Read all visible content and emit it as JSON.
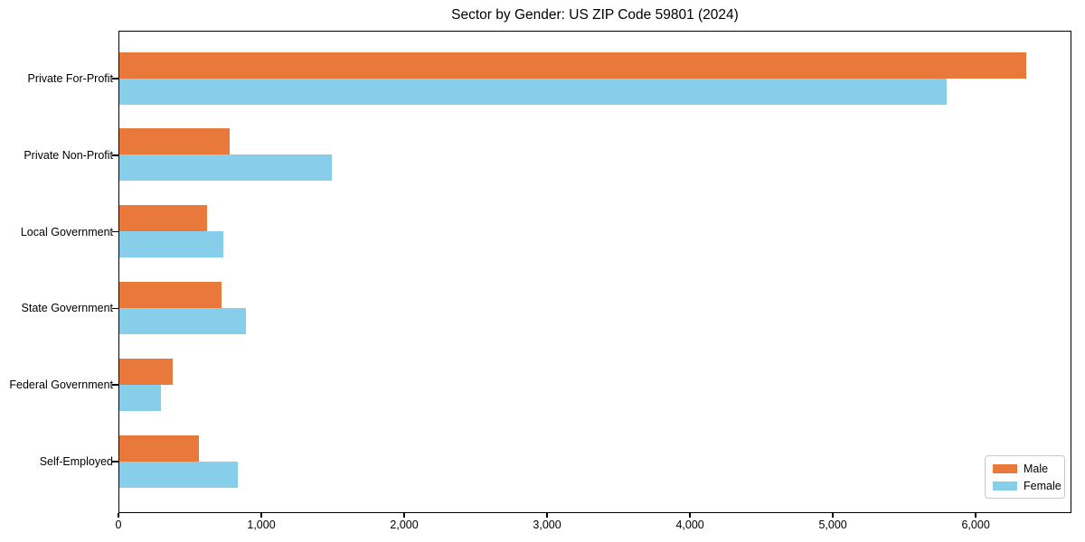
{
  "title": "Sector by Gender: US ZIP Code 59801 (2024)",
  "colors": {
    "male": "#e8793a",
    "female": "#87ceeb",
    "axis": "#000000",
    "legend_border": "#c9c9c9",
    "background": "#ffffff"
  },
  "legend": {
    "position": "lower right",
    "items": [
      {
        "label": "Male",
        "color": "#e8793a"
      },
      {
        "label": "Female",
        "color": "#87ceeb"
      }
    ]
  },
  "chart_data": {
    "type": "bar",
    "orientation": "horizontal",
    "title": "Sector by Gender: US ZIP Code 59801 (2024)",
    "xlabel": "",
    "ylabel": "",
    "categories": [
      "Private For-Profit",
      "Private Non-Profit",
      "Local Government",
      "State Government",
      "Federal Government",
      "Self-Employed"
    ],
    "series": [
      {
        "name": "Male",
        "color": "#e8793a",
        "values": [
          6350,
          770,
          615,
          715,
          375,
          555
        ]
      },
      {
        "name": "Female",
        "color": "#87ceeb",
        "values": [
          5790,
          1490,
          730,
          885,
          290,
          830
        ]
      }
    ],
    "xlim": [
      0,
      6670
    ],
    "xticks": [
      0,
      1000,
      2000,
      3000,
      4000,
      5000,
      6000
    ],
    "xtick_labels": [
      "0",
      "1,000",
      "2,000",
      "3,000",
      "4,000",
      "5,000",
      "6,000"
    ],
    "grid": false,
    "legend_position": "lower right"
  }
}
